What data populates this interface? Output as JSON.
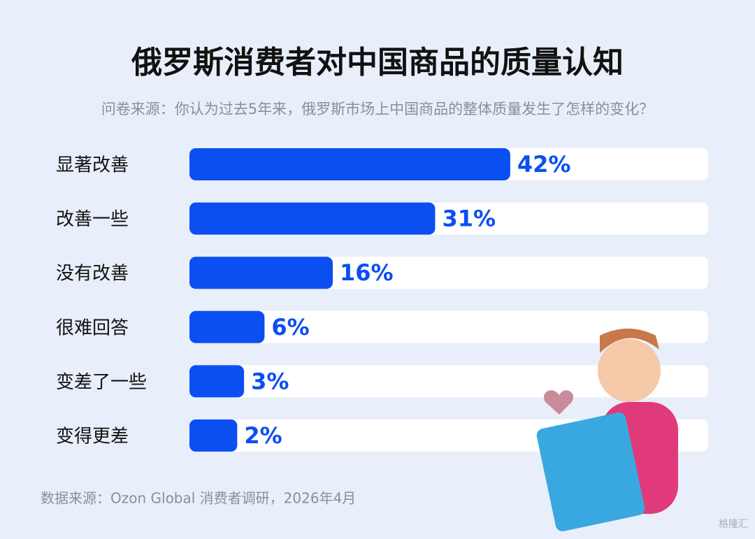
{
  "chart_data": {
    "type": "bar",
    "orientation": "horizontal",
    "title": "俄罗斯消费者对中国商品的质量认知",
    "subtitle": "问卷来源：你认为过去5年来，俄罗斯市场上中国商品的整体质量发生了怎样的变化？",
    "categories": [
      "显著改善",
      "改善一些",
      "没有改善",
      "很难回答",
      "变差了一些",
      "变得更差"
    ],
    "values": [
      42,
      31,
      16,
      6,
      3,
      2
    ],
    "value_labels": [
      "42%",
      "31%",
      "16%",
      "6%",
      "3%",
      "2%"
    ],
    "color": "#0b4ff2",
    "xlim": [
      -5,
      71
    ],
    "source": "数据来源：Ozon Global 消费者调研，2026年4月",
    "watermark": "格隆汇"
  }
}
